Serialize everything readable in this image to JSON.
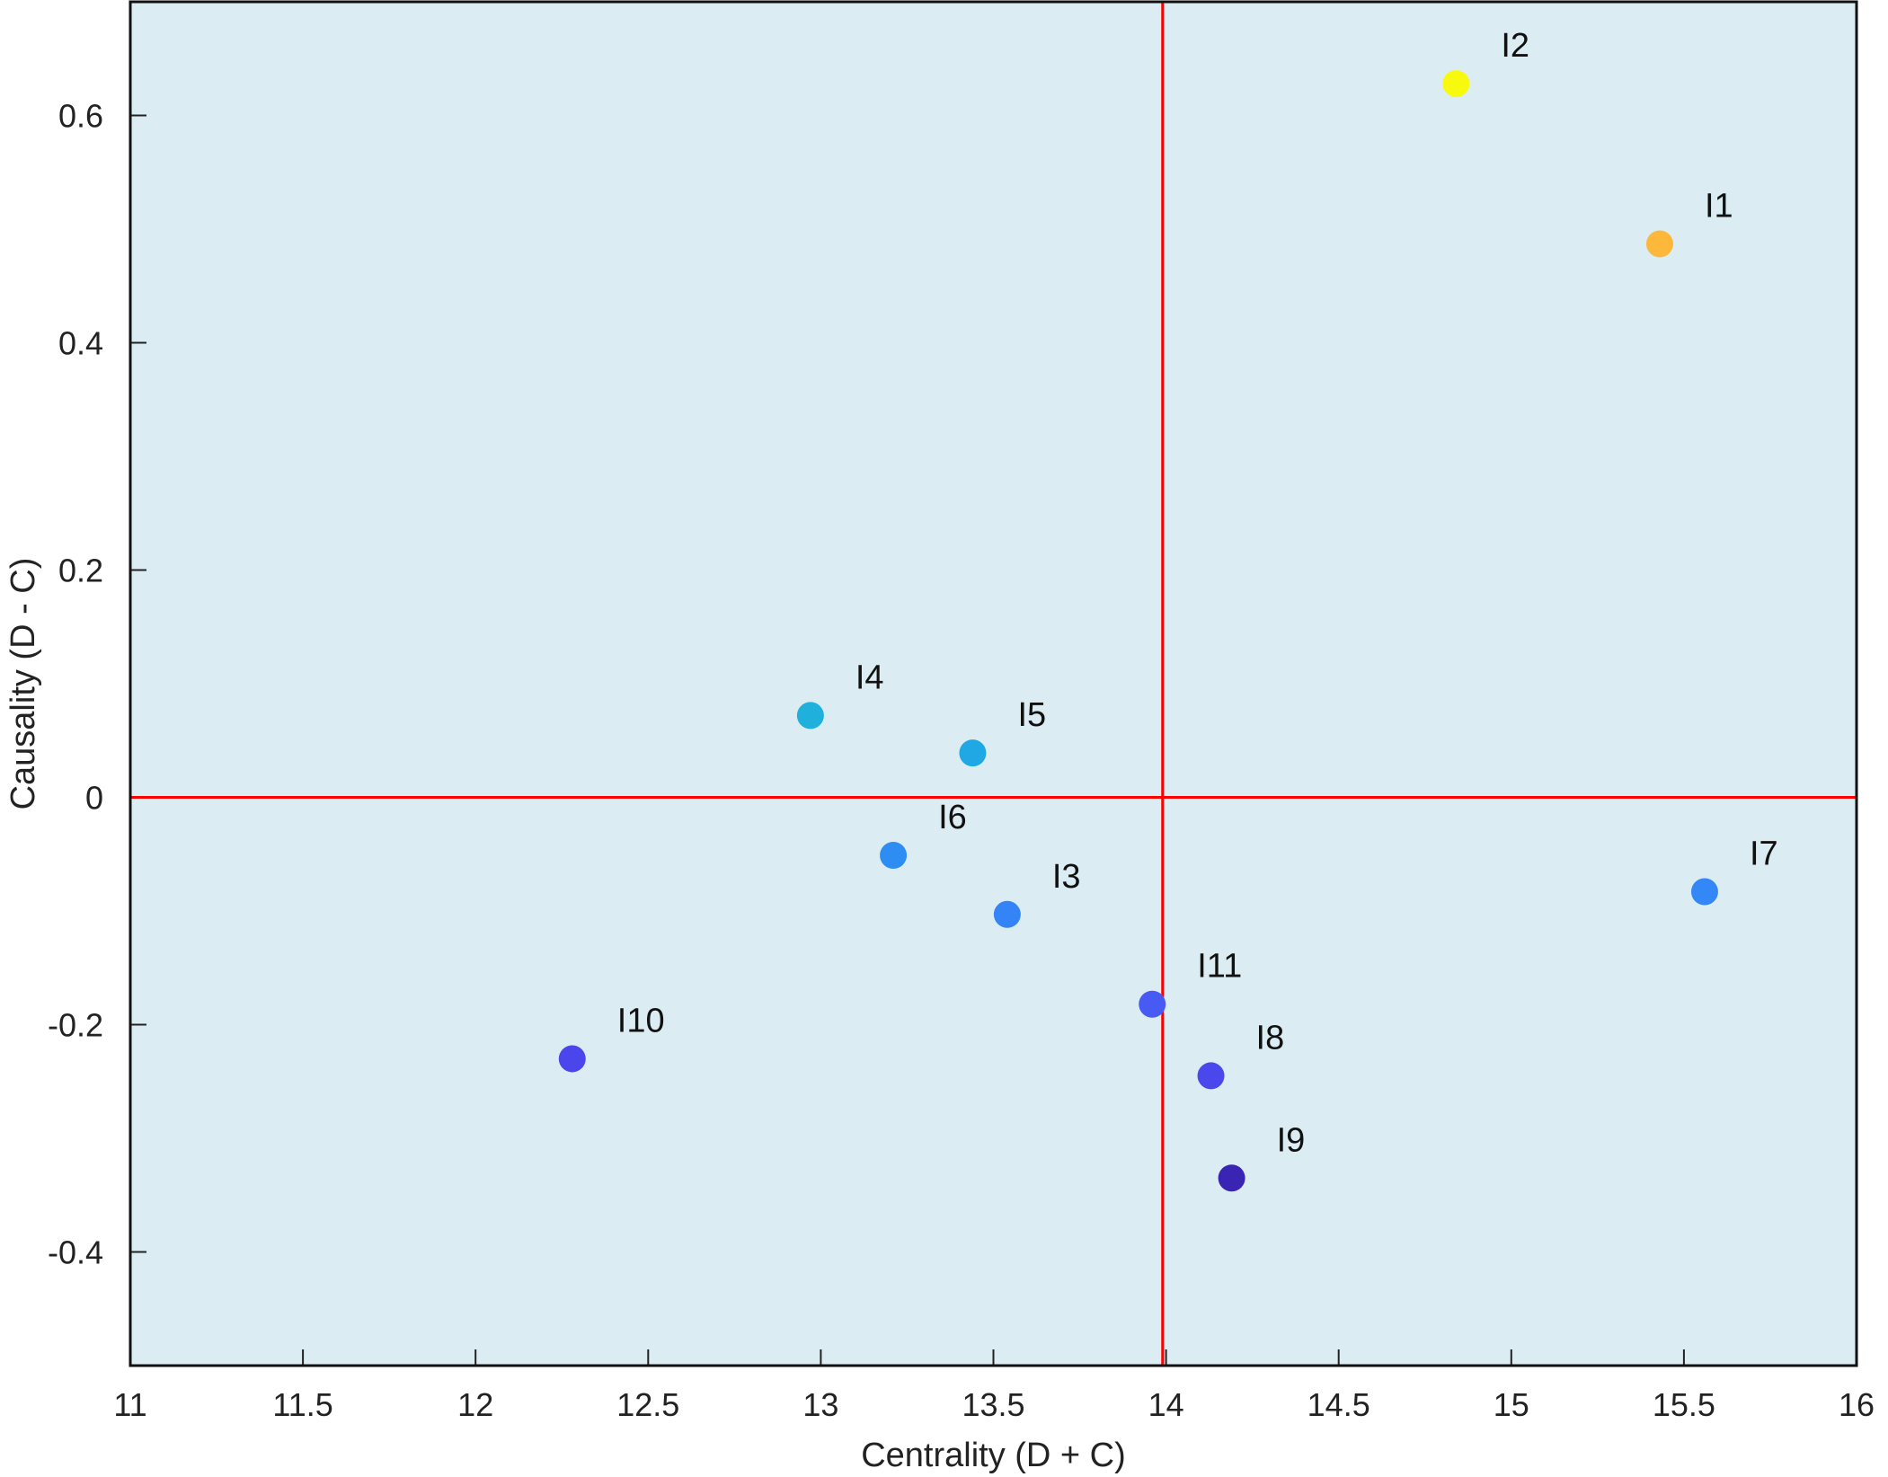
{
  "chart_data": {
    "type": "scatter",
    "xlabel": "Centrality (D + C)",
    "ylabel": "Causality (D - C)",
    "xlim": [
      11,
      16
    ],
    "ylim": [
      -0.5,
      0.7
    ],
    "x_ticks": [
      11,
      11.5,
      12,
      12.5,
      13,
      13.5,
      14,
      14.5,
      15,
      15.5,
      16
    ],
    "x_tick_labels": [
      "11",
      "11.5",
      "12",
      "12.5",
      "13",
      "13.5",
      "14",
      "14.5",
      "15",
      "15.5",
      "16"
    ],
    "y_ticks": [
      -0.4,
      -0.2,
      0,
      0.2,
      0.4,
      0.6
    ],
    "y_tick_labels": [
      "-0.4",
      "-0.2",
      "0",
      "0.2",
      "0.4",
      "0.6"
    ],
    "reference_lines": {
      "x": 13.99,
      "y": 0,
      "color": "#ff0000"
    },
    "grid": false,
    "background": "#dbedf3",
    "points": [
      {
        "label": "I1",
        "x": 15.43,
        "y": 0.487,
        "color": "#fdb73b"
      },
      {
        "label": "I2",
        "x": 14.84,
        "y": 0.628,
        "color": "#f8fa0e"
      },
      {
        "label": "I3",
        "x": 13.54,
        "y": -0.103,
        "color": "#3484f8"
      },
      {
        "label": "I4",
        "x": 12.97,
        "y": 0.072,
        "color": "#1fb0dc"
      },
      {
        "label": "I5",
        "x": 13.44,
        "y": 0.039,
        "color": "#1fa8e3"
      },
      {
        "label": "I6",
        "x": 13.21,
        "y": -0.051,
        "color": "#2d8df2"
      },
      {
        "label": "I7",
        "x": 15.56,
        "y": -0.083,
        "color": "#3487f6"
      },
      {
        "label": "I8",
        "x": 14.13,
        "y": -0.245,
        "color": "#4a47ec"
      },
      {
        "label": "I9",
        "x": 14.19,
        "y": -0.335,
        "color": "#3a24b4"
      },
      {
        "label": "I10",
        "x": 12.28,
        "y": -0.23,
        "color": "#4a46ec"
      },
      {
        "label": "I11",
        "x": 13.96,
        "y": -0.182,
        "color": "#475bf4"
      }
    ]
  }
}
